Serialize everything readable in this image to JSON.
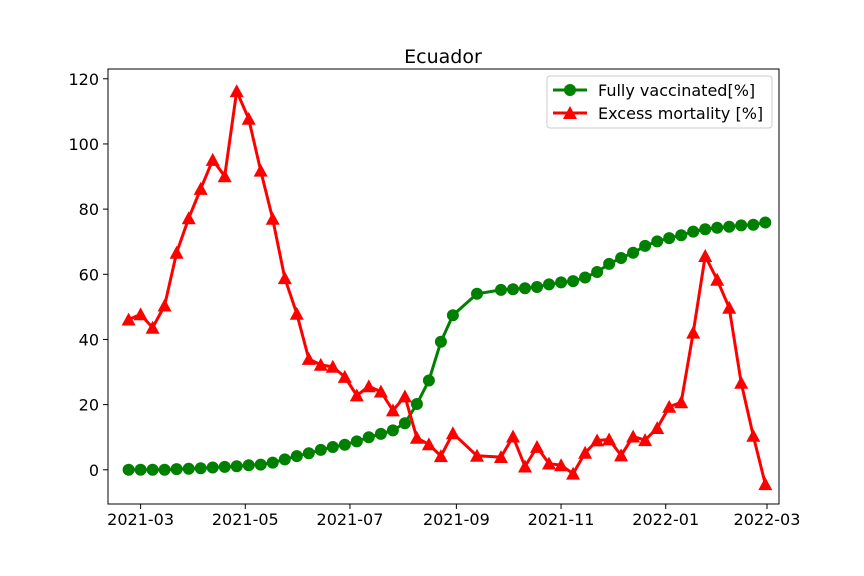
{
  "chart_data": {
    "type": "line",
    "title": "Ecuador",
    "xlabel": "",
    "ylabel": "",
    "x_tick_labels": [
      "2021-03",
      "2021-05",
      "2021-07",
      "2021-09",
      "2021-11",
      "2022-01",
      "2022-03"
    ],
    "x_tick_dates": [
      "2021-03-01",
      "2021-05-01",
      "2021-07-01",
      "2021-09-01",
      "2021-11-01",
      "2022-01-01",
      "2022-03-01"
    ],
    "y_ticks": [
      0,
      20,
      40,
      60,
      80,
      100,
      120
    ],
    "xlim": [
      "2021-02-10",
      "2022-03-08"
    ],
    "ylim": [
      -10.5,
      123
    ],
    "grid": false,
    "legend_position": "top-right",
    "series": [
      {
        "name": "Fully vaccinated[%]",
        "color": "#008000",
        "marker": "circle",
        "x": [
          "2021-02-22",
          "2021-03-01",
          "2021-03-08",
          "2021-03-15",
          "2021-03-22",
          "2021-03-29",
          "2021-04-05",
          "2021-04-12",
          "2021-04-19",
          "2021-04-26",
          "2021-05-03",
          "2021-05-10",
          "2021-05-17",
          "2021-05-24",
          "2021-05-31",
          "2021-06-07",
          "2021-06-14",
          "2021-06-21",
          "2021-06-28",
          "2021-07-05",
          "2021-07-12",
          "2021-07-19",
          "2021-07-26",
          "2021-08-02",
          "2021-08-09",
          "2021-08-16",
          "2021-08-23",
          "2021-08-30",
          "2021-09-13",
          "2021-09-27",
          "2021-10-04",
          "2021-10-11",
          "2021-10-18",
          "2021-10-25",
          "2021-11-01",
          "2021-11-08",
          "2021-11-15",
          "2021-11-22",
          "2021-11-29",
          "2021-12-06",
          "2021-12-13",
          "2021-12-20",
          "2021-12-27",
          "2022-01-03",
          "2022-01-10",
          "2022-01-17",
          "2022-01-24",
          "2022-01-31",
          "2022-02-07",
          "2022-02-14",
          "2022-02-21",
          "2022-02-28"
        ],
        "y": [
          0,
          0,
          0,
          0,
          0.2,
          0.3,
          0.5,
          0.7,
          0.9,
          1.1,
          1.4,
          1.6,
          2.2,
          3.2,
          4.2,
          5.1,
          6.1,
          7.0,
          7.7,
          8.7,
          10.0,
          11.0,
          12.1,
          14.3,
          20.2,
          27.4,
          39.3,
          47.4,
          54.0,
          55.2,
          55.4,
          55.7,
          56.1,
          56.9,
          57.5,
          57.9,
          59.0,
          60.7,
          63.2,
          65.0,
          66.6,
          68.7,
          70.1,
          71.1,
          72.0,
          73.1,
          73.8,
          74.3,
          74.6,
          75.0,
          75.2,
          75.9
        ]
      },
      {
        "name": "Excess mortality [%]",
        "color": "#ff0000",
        "marker": "triangle",
        "x": [
          "2021-02-22",
          "2021-03-01",
          "2021-03-08",
          "2021-03-15",
          "2021-03-22",
          "2021-03-29",
          "2021-04-05",
          "2021-04-12",
          "2021-04-19",
          "2021-04-26",
          "2021-05-03",
          "2021-05-10",
          "2021-05-17",
          "2021-05-24",
          "2021-05-31",
          "2021-06-07",
          "2021-06-14",
          "2021-06-21",
          "2021-06-28",
          "2021-07-05",
          "2021-07-12",
          "2021-07-19",
          "2021-07-26",
          "2021-08-02",
          "2021-08-09",
          "2021-08-16",
          "2021-08-23",
          "2021-08-30",
          "2021-09-13",
          "2021-09-27",
          "2021-10-04",
          "2021-10-11",
          "2021-10-18",
          "2021-10-25",
          "2021-11-01",
          "2021-11-08",
          "2021-11-15",
          "2021-11-22",
          "2021-11-29",
          "2021-12-06",
          "2021-12-13",
          "2021-12-20",
          "2021-12-27",
          "2022-01-03",
          "2022-01-10",
          "2022-01-17",
          "2022-01-24",
          "2022-01-31",
          "2022-02-07",
          "2022-02-14",
          "2022-02-21",
          "2022-02-28"
        ],
        "y": [
          46.1,
          47.7,
          43.6,
          50.4,
          66.6,
          77.2,
          86.2,
          95.1,
          90.1,
          116.2,
          107.7,
          91.8,
          77.0,
          58.8,
          47.9,
          34.0,
          32.2,
          31.6,
          28.5,
          22.8,
          25.6,
          24.0,
          18.2,
          22.5,
          9.8,
          7.8,
          4.2,
          11.2,
          4.3,
          3.9,
          10.2,
          1.0,
          7.0,
          1.9,
          1.4,
          -1.2,
          5.2,
          9.0,
          9.3,
          4.4,
          10.2,
          9.1,
          12.8,
          19.3,
          20.7,
          42.1,
          65.6,
          58.3,
          49.7,
          26.7,
          10.4,
          -4.4
        ]
      }
    ]
  }
}
